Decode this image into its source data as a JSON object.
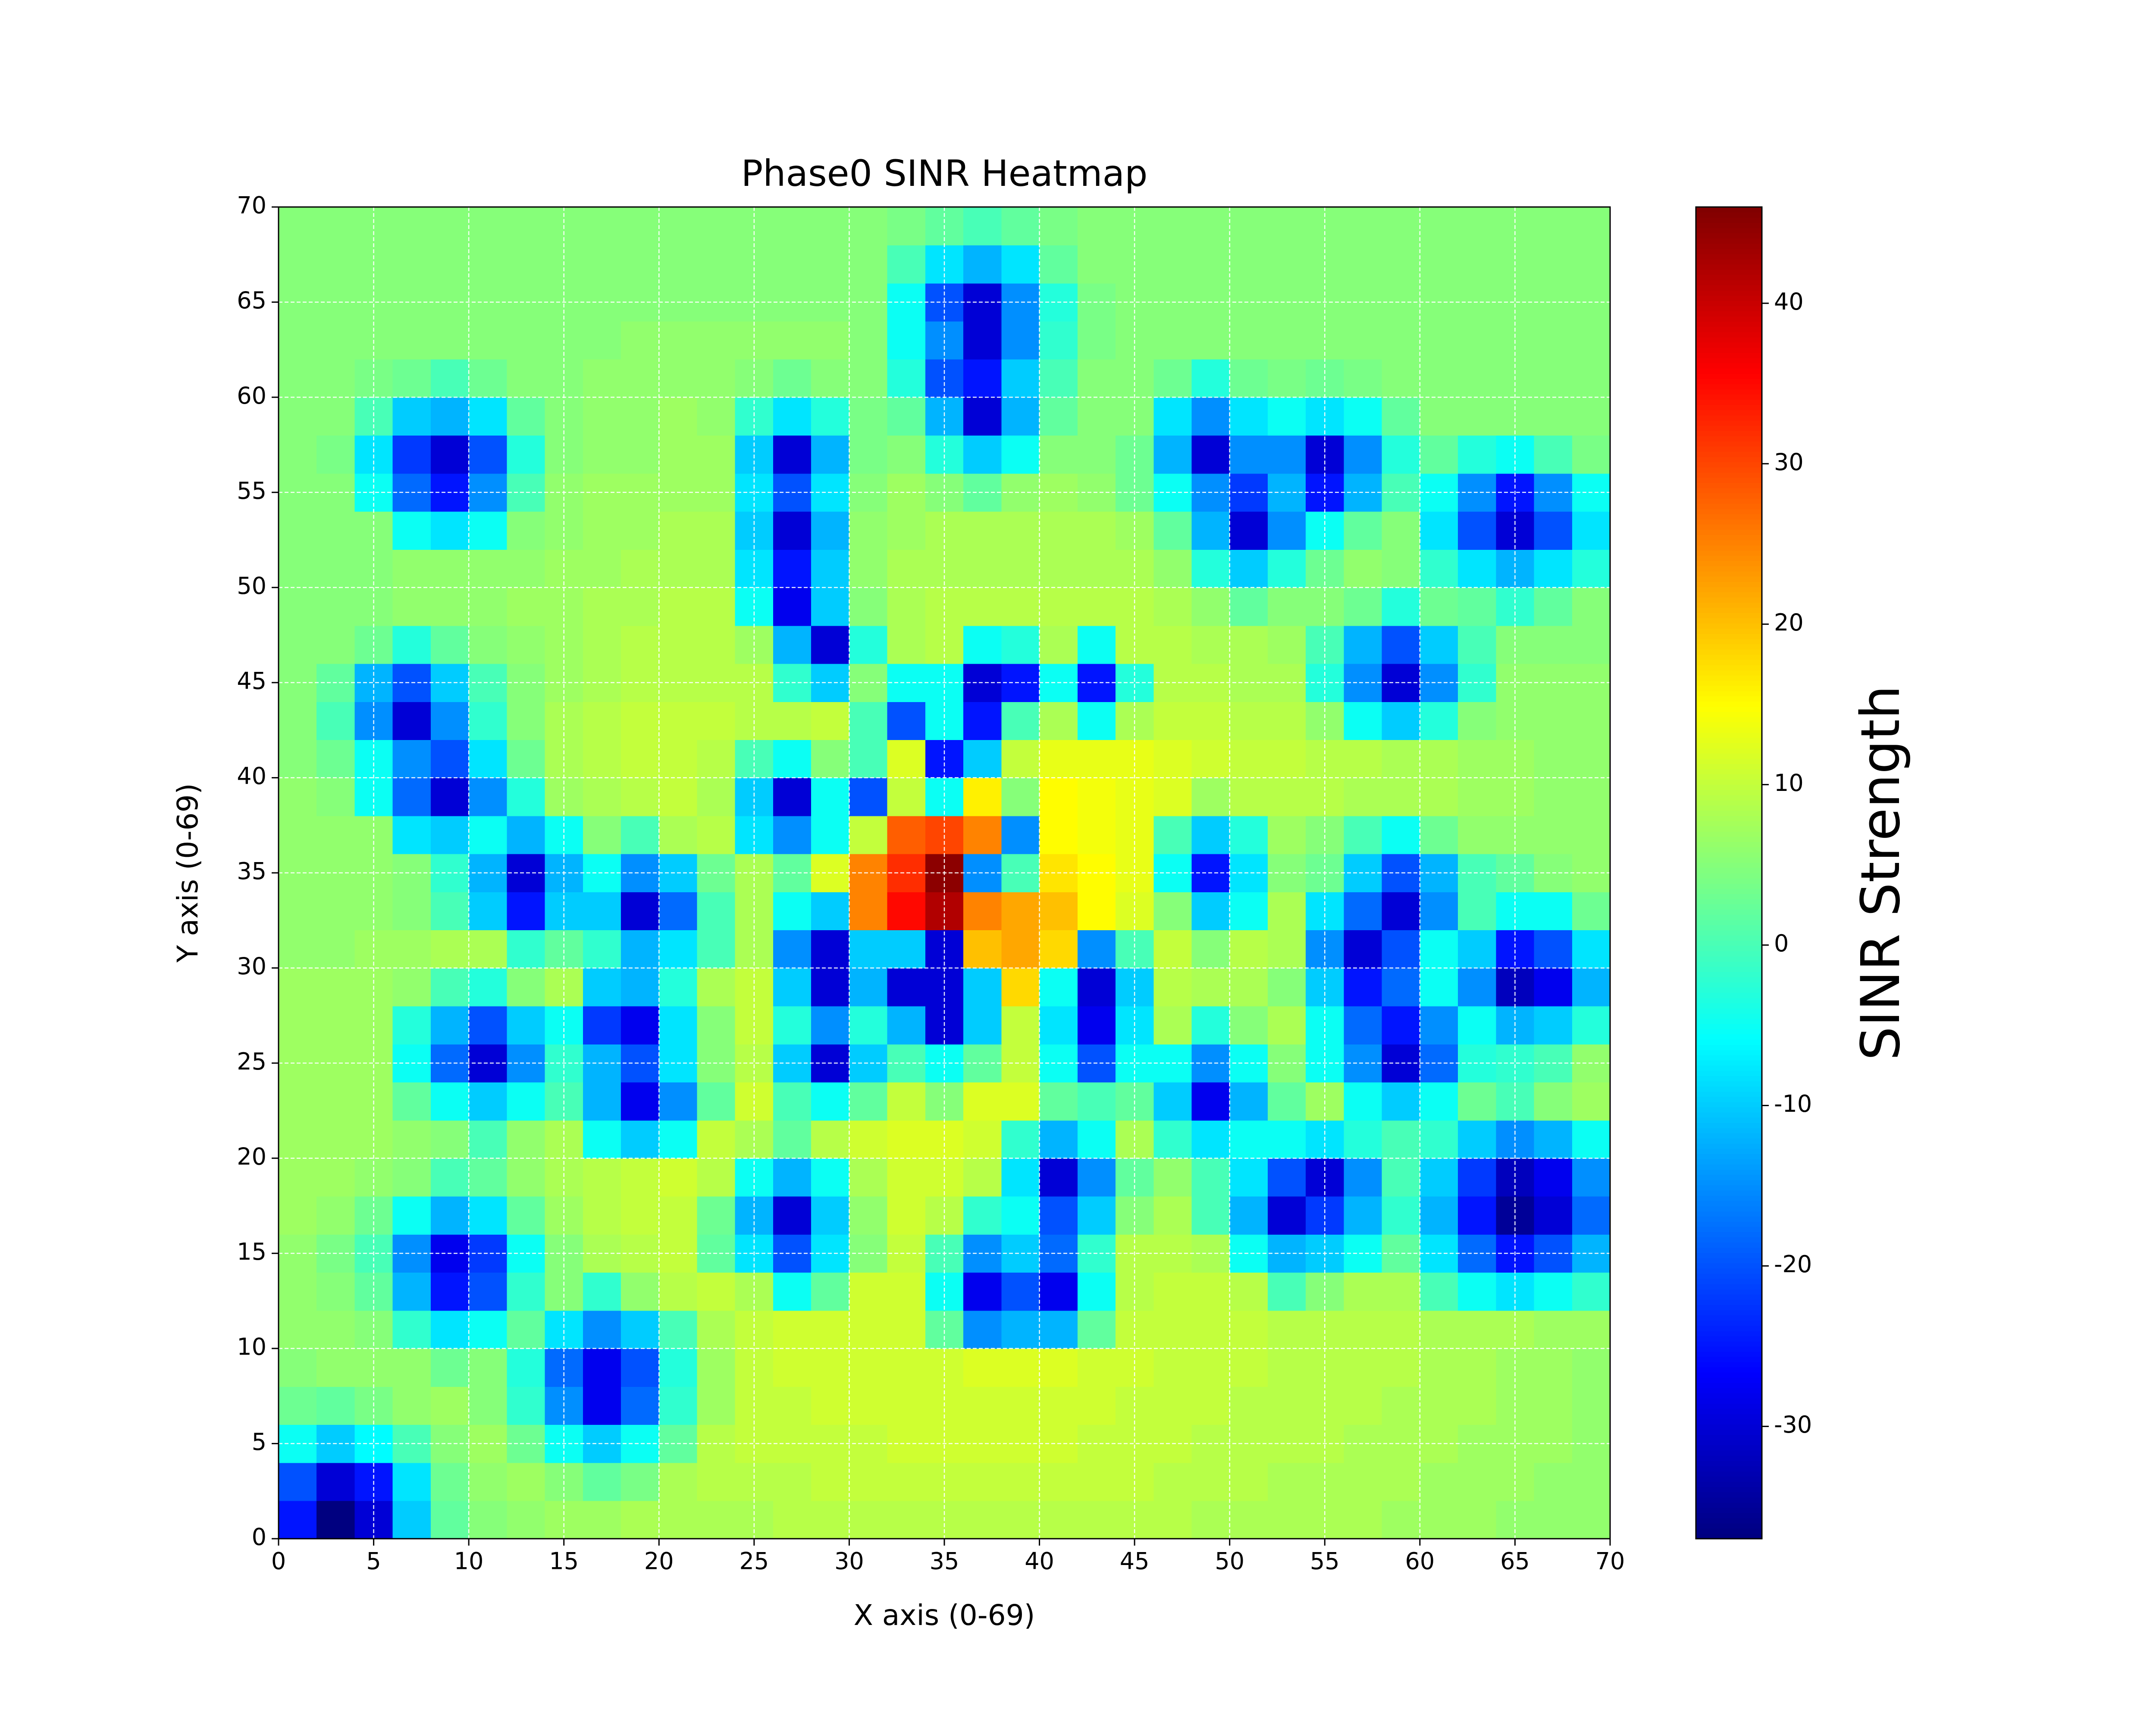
{
  "chart_data": {
    "type": "heatmap",
    "title": "Phase0 SINR Heatmap",
    "x_label": "X axis (0-69)",
    "y_label": "Y axis (0-69)",
    "xlim": [
      0,
      70
    ],
    "ylim": [
      0,
      70
    ],
    "xticks": [
      0,
      5,
      10,
      15,
      20,
      25,
      30,
      35,
      40,
      45,
      50,
      55,
      60,
      65,
      70
    ],
    "yticks": [
      0,
      5,
      10,
      15,
      20,
      25,
      30,
      35,
      40,
      45,
      50,
      55,
      60,
      65,
      70
    ],
    "grid": true,
    "cmap": "jet",
    "clim": [
      -37,
      46
    ],
    "colorbar_label": "SINR Strength",
    "colorbar_ticks": [
      -30,
      -20,
      -10,
      0,
      10,
      20,
      30,
      40
    ],
    "z": [
      [
        -25,
        -37,
        -30,
        -10,
        2,
        5,
        6,
        7,
        7,
        8,
        8,
        8,
        8,
        9,
        9,
        9,
        9,
        9,
        9,
        9,
        9,
        9,
        9,
        9,
        8,
        8,
        8,
        8,
        8,
        7,
        7,
        7,
        6,
        6,
        6
      ],
      [
        -20,
        -30,
        -25,
        -8,
        3,
        6,
        7,
        5,
        2,
        4,
        8,
        9,
        9,
        9,
        10,
        10,
        10,
        10,
        10,
        10,
        10,
        10,
        10,
        9,
        9,
        9,
        8,
        8,
        8,
        8,
        7,
        7,
        7,
        6,
        6
      ],
      [
        -5,
        -10,
        -6,
        0,
        5,
        7,
        3,
        -5,
        -10,
        -5,
        2,
        9,
        10,
        10,
        10,
        10,
        11,
        11,
        11,
        11,
        11,
        10,
        10,
        10,
        9,
        9,
        9,
        9,
        8,
        8,
        8,
        7,
        7,
        7,
        6
      ],
      [
        3,
        2,
        4,
        6,
        7,
        5,
        -2,
        -15,
        -28,
        -18,
        -2,
        7,
        10,
        10,
        11,
        11,
        11,
        11,
        11,
        11,
        11,
        11,
        10,
        10,
        10,
        9,
        9,
        9,
        9,
        8,
        8,
        8,
        7,
        7,
        6
      ],
      [
        5,
        6,
        6,
        6,
        3,
        5,
        -3,
        -18,
        -28,
        -20,
        -3,
        7,
        10,
        11,
        11,
        11,
        11,
        11,
        12,
        12,
        12,
        11,
        11,
        10,
        10,
        10,
        9,
        9,
        9,
        9,
        8,
        8,
        7,
        7,
        6
      ],
      [
        6,
        6,
        5,
        -2,
        -8,
        -5,
        2,
        -8,
        -15,
        -10,
        0,
        8,
        10,
        11,
        11,
        11,
        11,
        2,
        -15,
        -12,
        -12,
        2,
        10,
        10,
        10,
        10,
        9,
        9,
        9,
        9,
        8,
        8,
        8,
        7,
        7
      ],
      [
        6,
        5,
        2,
        -12,
        -25,
        -20,
        -2,
        5,
        -2,
        6,
        9,
        10,
        8,
        -5,
        2,
        11,
        11,
        -5,
        -28,
        -20,
        -28,
        -5,
        9,
        10,
        10,
        9,
        0,
        5,
        8,
        8,
        0,
        -5,
        -8,
        -5,
        -2
      ],
      [
        6,
        4,
        0,
        -15,
        -28,
        -22,
        -5,
        5,
        8,
        9,
        10,
        2,
        -8,
        -20,
        -8,
        5,
        10,
        0,
        -15,
        -10,
        -18,
        -2,
        9,
        9,
        8,
        -5,
        -12,
        -10,
        -5,
        2,
        -8,
        -18,
        -25,
        -20,
        -12
      ],
      [
        7,
        6,
        3,
        -5,
        -12,
        -8,
        2,
        7,
        9,
        10,
        10,
        3,
        -12,
        -30,
        -10,
        6,
        11,
        9,
        -2,
        -5,
        -20,
        -10,
        5,
        8,
        0,
        -12,
        -30,
        -22,
        -12,
        -2,
        -12,
        -25,
        -35,
        -30,
        -18
      ],
      [
        7,
        7,
        6,
        5,
        0,
        2,
        6,
        8,
        9,
        10,
        11,
        9,
        -5,
        -12,
        -5,
        8,
        11,
        11,
        9,
        -8,
        -30,
        -15,
        2,
        6,
        0,
        -8,
        -20,
        -30,
        -15,
        0,
        -10,
        -22,
        -32,
        -28,
        -15
      ],
      [
        7,
        7,
        7,
        6,
        5,
        0,
        6,
        8,
        -5,
        -10,
        -5,
        10,
        8,
        2,
        9,
        11,
        12,
        12,
        11,
        -2,
        -12,
        -5,
        8,
        -2,
        -8,
        -5,
        -5,
        -8,
        -3,
        0,
        -2,
        -10,
        -15,
        -12,
        -5
      ],
      [
        7,
        7,
        7,
        2,
        -5,
        -10,
        -5,
        0,
        -12,
        -28,
        -15,
        2,
        11,
        0,
        -5,
        2,
        10,
        5,
        12,
        12,
        2,
        0,
        2,
        -10,
        -28,
        -12,
        2,
        7,
        -5,
        -10,
        -5,
        3,
        0,
        5,
        7
      ],
      [
        7,
        7,
        7,
        -5,
        -18,
        -30,
        -15,
        -2,
        -12,
        -20,
        -8,
        5,
        9,
        -10,
        -30,
        -10,
        0,
        -5,
        2,
        10,
        -5,
        -20,
        -5,
        -5,
        -15,
        -5,
        5,
        -5,
        -15,
        -30,
        -18,
        -3,
        -2,
        0,
        6
      ],
      [
        7,
        7,
        7,
        -3,
        -12,
        -20,
        -10,
        -5,
        -22,
        -28,
        -8,
        5,
        10,
        -3,
        -15,
        -3,
        -12,
        -30,
        -10,
        10,
        -8,
        -28,
        -8,
        8,
        -3,
        5,
        8,
        -5,
        -18,
        -25,
        -15,
        -5,
        -12,
        -10,
        -3
      ],
      [
        7,
        7,
        7,
        6,
        0,
        -3,
        5,
        8,
        -10,
        -12,
        -3,
        8,
        10,
        -10,
        -30,
        -12,
        -30,
        -30,
        -10,
        18,
        -5,
        -30,
        -10,
        9,
        8,
        8,
        5,
        -10,
        -25,
        -18,
        -5,
        -15,
        -32,
        -28,
        -12
      ],
      [
        6,
        6,
        7,
        7,
        8,
        8,
        -2,
        2,
        -2,
        -12,
        -8,
        0,
        8,
        -15,
        -30,
        -10,
        -10,
        -30,
        20,
        22,
        18,
        -15,
        0,
        10,
        5,
        9,
        8,
        -15,
        -30,
        -20,
        -5,
        -10,
        -25,
        -20,
        -8
      ],
      [
        6,
        6,
        6,
        5,
        0,
        -10,
        -25,
        -10,
        -10,
        -30,
        -18,
        0,
        8,
        -5,
        -10,
        25,
        35,
        42,
        25,
        22,
        20,
        15,
        12,
        5,
        -10,
        -5,
        8,
        -8,
        -18,
        -30,
        -15,
        0,
        -5,
        -5,
        3
      ],
      [
        6,
        6,
        6,
        5,
        -2,
        -12,
        -30,
        -12,
        -5,
        -15,
        -10,
        3,
        8,
        2,
        12,
        25,
        32,
        45,
        -15,
        0,
        17,
        15,
        13,
        -5,
        -25,
        -8,
        5,
        3,
        -10,
        -20,
        -12,
        0,
        2,
        5,
        6
      ],
      [
        6,
        6,
        6,
        -8,
        -10,
        -5,
        -12,
        -5,
        5,
        0,
        8,
        9,
        -8,
        -15,
        -5,
        10,
        28,
        30,
        25,
        -15,
        15,
        14,
        13,
        0,
        -10,
        -3,
        7,
        5,
        0,
        -5,
        3,
        6,
        6,
        6,
        6
      ],
      [
        6,
        5,
        -5,
        -18,
        -30,
        -15,
        -3,
        7,
        8,
        9,
        10,
        8,
        -10,
        -30,
        -5,
        -20,
        10,
        -5,
        16,
        5,
        15,
        14,
        13,
        12,
        7,
        9,
        9,
        9,
        8,
        8,
        8,
        7,
        7,
        6,
        6
      ],
      [
        5,
        3,
        -5,
        -15,
        -20,
        -8,
        3,
        8,
        9,
        10,
        10,
        9,
        0,
        -5,
        5,
        0,
        12,
        -25,
        -10,
        10,
        13,
        13,
        13,
        12,
        11,
        10,
        10,
        9,
        9,
        8,
        8,
        7,
        7,
        6,
        6
      ],
      [
        5,
        0,
        -15,
        -30,
        -15,
        -2,
        5,
        8,
        9,
        10,
        10,
        10,
        9,
        9,
        10,
        0,
        -20,
        -5,
        -25,
        0,
        8,
        -5,
        8,
        10,
        10,
        9,
        9,
        6,
        -5,
        -10,
        -3,
        5,
        6,
        6,
        6
      ],
      [
        5,
        2,
        -12,
        -20,
        -10,
        0,
        5,
        7,
        8,
        9,
        9,
        9,
        9,
        -2,
        -10,
        5,
        -5,
        -5,
        -30,
        -25,
        -5,
        -25,
        -3,
        9,
        9,
        8,
        8,
        -3,
        -15,
        -30,
        -15,
        -2,
        6,
        6,
        6
      ],
      [
        5,
        5,
        3,
        -3,
        2,
        5,
        6,
        7,
        8,
        9,
        9,
        9,
        7,
        -12,
        -30,
        -3,
        8,
        9,
        -5,
        -3,
        8,
        -5,
        9,
        9,
        8,
        8,
        7,
        0,
        -12,
        -20,
        -10,
        0,
        5,
        5,
        5
      ],
      [
        5,
        5,
        5,
        6,
        6,
        6,
        7,
        7,
        8,
        8,
        9,
        9,
        -5,
        -28,
        -10,
        5,
        8,
        9,
        9,
        9,
        9,
        9,
        9,
        8,
        6,
        2,
        5,
        5,
        3,
        -3,
        3,
        2,
        -2,
        2,
        5
      ],
      [
        5,
        5,
        5,
        6,
        6,
        6,
        6,
        7,
        7,
        8,
        8,
        8,
        -8,
        -25,
        -10,
        6,
        8,
        8,
        8,
        8,
        8,
        8,
        8,
        6,
        -3,
        -10,
        -3,
        3,
        6,
        5,
        -2,
        -8,
        -12,
        -8,
        -3
      ],
      [
        5,
        5,
        5,
        -5,
        -8,
        -5,
        5,
        6,
        7,
        7,
        8,
        8,
        -10,
        -30,
        -12,
        6,
        7,
        8,
        8,
        8,
        8,
        8,
        7,
        2,
        -12,
        -30,
        -15,
        -5,
        2,
        5,
        -8,
        -20,
        -30,
        -20,
        -8
      ],
      [
        5,
        5,
        -5,
        -18,
        -25,
        -15,
        0,
        6,
        7,
        7,
        7,
        7,
        -8,
        -20,
        -8,
        5,
        7,
        5,
        2,
        6,
        7,
        6,
        3,
        -5,
        -15,
        -22,
        -12,
        -25,
        -12,
        0,
        -5,
        -15,
        -25,
        -15,
        -5
      ],
      [
        5,
        4,
        -8,
        -22,
        -30,
        -20,
        -3,
        5,
        6,
        6,
        7,
        7,
        -10,
        -30,
        -12,
        4,
        5,
        -3,
        -10,
        -5,
        5,
        5,
        3,
        -12,
        -30,
        -15,
        -15,
        -30,
        -15,
        -3,
        2,
        -3,
        -5,
        0,
        4
      ],
      [
        5,
        5,
        0,
        -10,
        -12,
        -8,
        2,
        5,
        6,
        6,
        7,
        6,
        -2,
        -8,
        -3,
        4,
        2,
        -12,
        -30,
        -12,
        2,
        5,
        5,
        -8,
        -15,
        -8,
        -5,
        -8,
        -5,
        2,
        5,
        5,
        5,
        5,
        5
      ],
      [
        5,
        5,
        4,
        3,
        0,
        3,
        5,
        5,
        6,
        6,
        6,
        6,
        5,
        3,
        5,
        5,
        -3,
        -20,
        -25,
        -10,
        0,
        5,
        5,
        3,
        -3,
        3,
        4,
        3,
        4,
        5,
        5,
        5,
        5,
        5,
        5
      ],
      [
        5,
        5,
        5,
        5,
        5,
        5,
        5,
        5,
        5,
        6,
        6,
        6,
        6,
        6,
        6,
        5,
        -5,
        -15,
        -30,
        -15,
        -2,
        4,
        5,
        5,
        5,
        5,
        5,
        5,
        5,
        5,
        5,
        5,
        5,
        5,
        5
      ],
      [
        5,
        5,
        5,
        5,
        5,
        5,
        5,
        5,
        5,
        5,
        5,
        5,
        5,
        5,
        5,
        5,
        -5,
        -20,
        -30,
        -15,
        -3,
        4,
        5,
        5,
        5,
        5,
        5,
        5,
        5,
        5,
        5,
        5,
        5,
        5,
        5
      ],
      [
        5,
        5,
        5,
        5,
        5,
        5,
        5,
        5,
        5,
        5,
        5,
        5,
        5,
        5,
        5,
        5,
        0,
        -8,
        -12,
        -8,
        2,
        5,
        5,
        5,
        5,
        5,
        5,
        5,
        5,
        5,
        5,
        5,
        5,
        5,
        5
      ],
      [
        5,
        5,
        5,
        5,
        5,
        5,
        5,
        5,
        5,
        5,
        5,
        5,
        5,
        5,
        5,
        5,
        4,
        2,
        0,
        2,
        4,
        5,
        5,
        5,
        5,
        5,
        5,
        5,
        5,
        5,
        5,
        5,
        5,
        5,
        5
      ]
    ]
  }
}
